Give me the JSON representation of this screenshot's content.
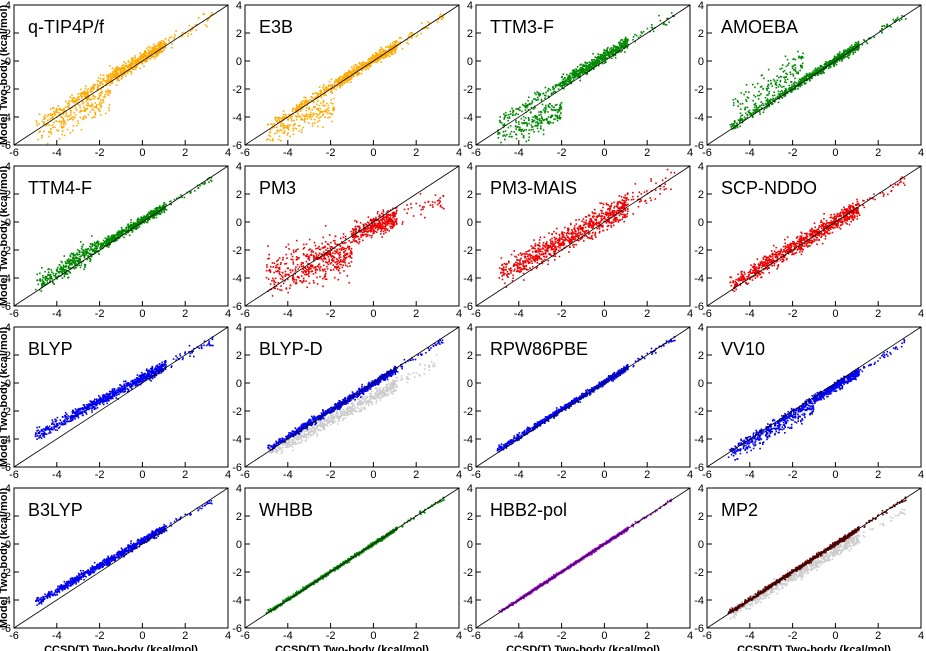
{
  "chart_data": {
    "type": "scatter",
    "title": "",
    "xlabel": "CCSD(T) Two-body (kcal/mol)",
    "ylabel": "Model Two-body (kcal/mol)",
    "xlim": [
      -6,
      4
    ],
    "ylim": [
      -6,
      4
    ],
    "x_ticks": [
      -6,
      -4,
      -2,
      0,
      2,
      4
    ],
    "y_ticks": [
      -6,
      -4,
      -2,
      0,
      2,
      4
    ],
    "reference_line": "y = x",
    "colors": {
      "orange": "#ffaa00",
      "green": "#008800",
      "red": "#ee0000",
      "blue": "#0000ee",
      "purple": "#9900cc",
      "maroon": "#660000",
      "gray": "#cccccc",
      "line": "#000000"
    },
    "panels": [
      {
        "label": "q-TIP4P/f",
        "color": "orange",
        "pattern": "qtip"
      },
      {
        "label": "E3B",
        "color": "orange",
        "pattern": "e3b"
      },
      {
        "label": "TTM3-F",
        "color": "green",
        "pattern": "ttm3"
      },
      {
        "label": "AMOEBA",
        "color": "green",
        "pattern": "amoeba"
      },
      {
        "label": "TTM4-F",
        "color": "green",
        "pattern": "ttm4"
      },
      {
        "label": "PM3",
        "color": "red",
        "pattern": "pm3"
      },
      {
        "label": "PM3-MAIS",
        "color": "red",
        "pattern": "pm3mais"
      },
      {
        "label": "SCP-NDDO",
        "color": "red",
        "pattern": "scp"
      },
      {
        "label": "BLYP",
        "color": "blue",
        "pattern": "blyp"
      },
      {
        "label": "BLYP-D",
        "color": "blue",
        "pattern": "blypd",
        "background_color": "gray"
      },
      {
        "label": "RPW86PBE",
        "color": "blue",
        "pattern": "rpw"
      },
      {
        "label": "VV10",
        "color": "blue",
        "pattern": "vv10"
      },
      {
        "label": "B3LYP",
        "color": "blue",
        "pattern": "b3lyp"
      },
      {
        "label": "WHBB",
        "color": "green",
        "pattern": "whbb"
      },
      {
        "label": "HBB2-pol",
        "color": "purple",
        "pattern": "hbb2"
      },
      {
        "label": "MP2",
        "color": "maroon",
        "pattern": "mp2",
        "background_color": "gray"
      }
    ]
  }
}
